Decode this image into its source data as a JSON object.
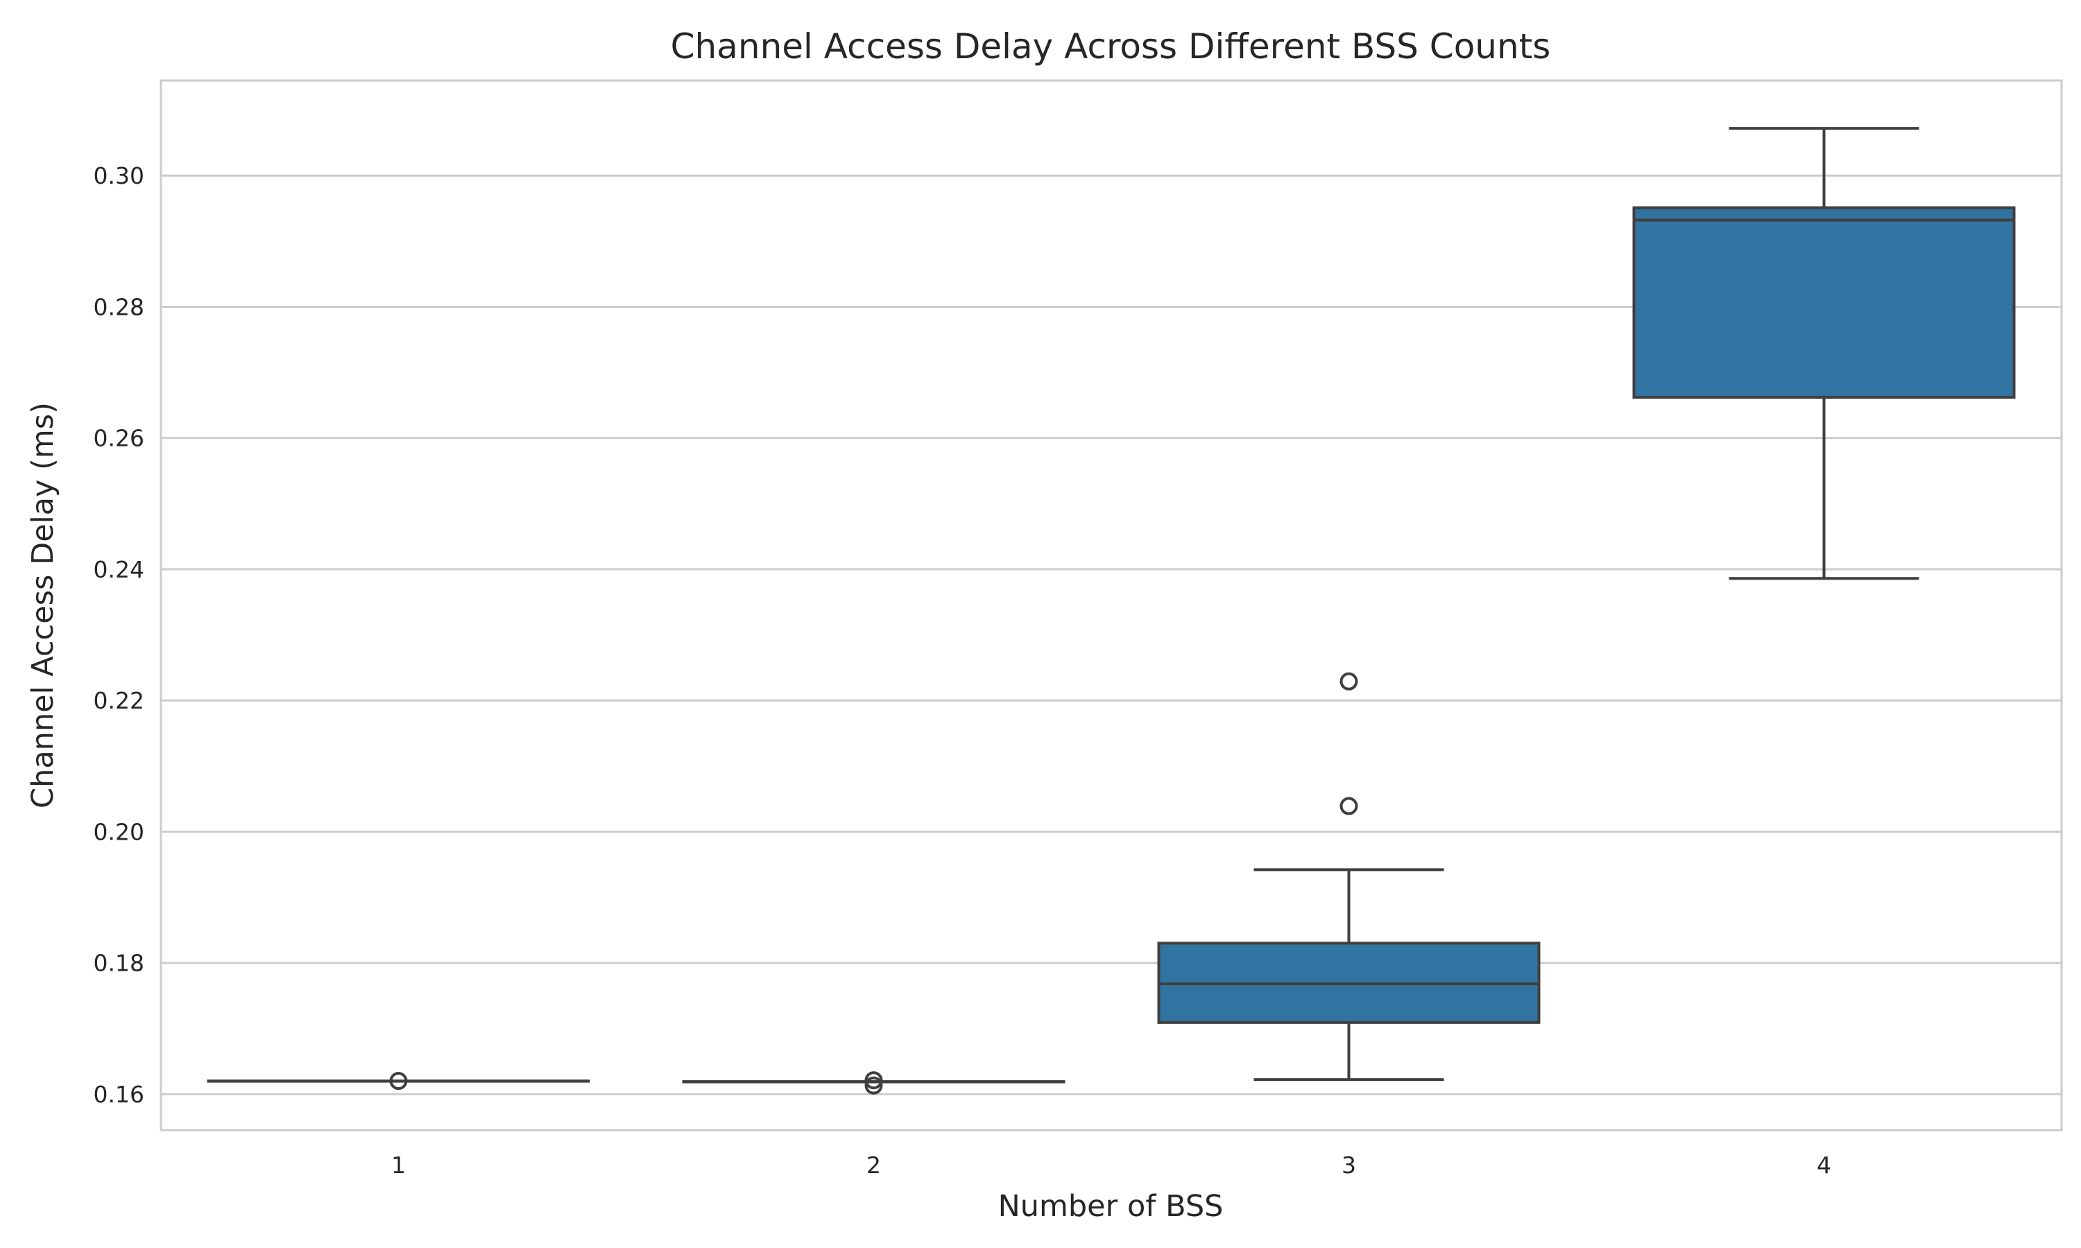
{
  "chart_data": {
    "type": "box",
    "title": "Channel Access Delay Across Different BSS Counts",
    "xlabel": "Number of BSS",
    "ylabel": "Channel Access Delay (ms)",
    "ylim": [
      0.1545,
      0.3145
    ],
    "yticks": [
      "0.16",
      "0.18",
      "0.20",
      "0.22",
      "0.24",
      "0.26",
      "0.28",
      "0.30"
    ],
    "grid": true,
    "legend": "none",
    "color": "#3274a1",
    "categories": [
      "1",
      "2",
      "3",
      "4"
    ],
    "boxes": [
      {
        "category": "1",
        "whisker_low": 0.162,
        "q1": 0.162,
        "median": 0.162,
        "q3": 0.162,
        "whisker_high": 0.162,
        "outliers": [
          0.162
        ]
      },
      {
        "category": "2",
        "whisker_low": 0.1619,
        "q1": 0.1619,
        "median": 0.1619,
        "q3": 0.1619,
        "whisker_high": 0.1619,
        "outliers": [
          0.1621,
          0.1613
        ]
      },
      {
        "category": "3",
        "whisker_low": 0.1622,
        "q1": 0.1709,
        "median": 0.1768,
        "q3": 0.183,
        "whisker_high": 0.1942,
        "outliers": [
          0.2039,
          0.2229
        ]
      },
      {
        "category": "4",
        "whisker_low": 0.2386,
        "q1": 0.2662,
        "median": 0.2932,
        "q3": 0.2951,
        "whisker_high": 0.3072,
        "outliers": []
      }
    ]
  }
}
